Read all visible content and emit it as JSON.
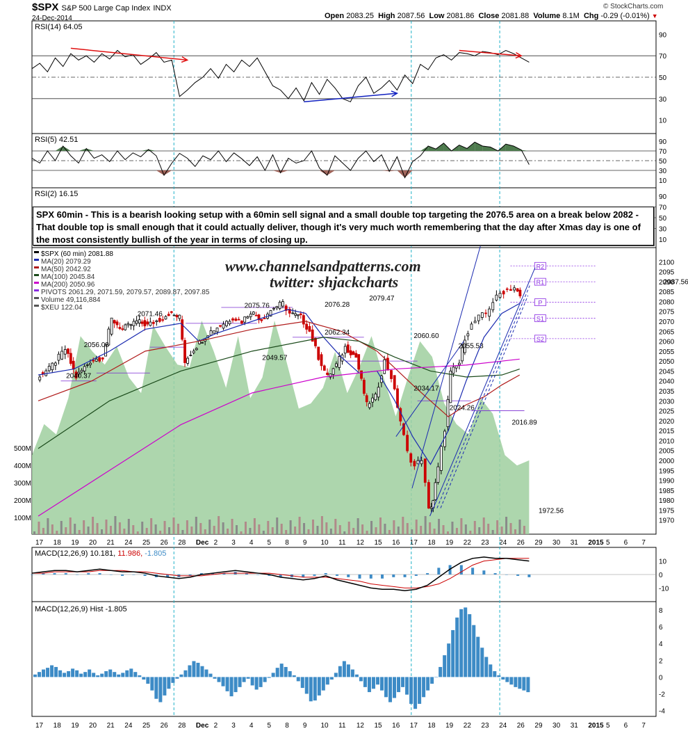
{
  "header": {
    "symbol": "$SPX",
    "name": "S&P 500 Large Cap Index",
    "exchange": "INDX",
    "date": "24-Dec-2014",
    "open_label": "Open",
    "open": "2083.25",
    "high_label": "High",
    "high": "2087.56",
    "low_label": "Low",
    "low": "2081.86",
    "close_label": "Close",
    "close": "2081.88",
    "volume_label": "Volume",
    "volume": "8.1M",
    "chg_label": "Chg",
    "chg": "-0.29 (-0.01%)",
    "credit": "© StockCharts.com"
  },
  "annotation": "SPX 60min - This is a bearish looking setup with a 60min sell signal and a small double top targeting the 2076.5 area on a break below 2082 - That double top is small enough that it could actually deliver, though it's very much worth remembering that the day after Xmas day is one of the most consistently bullish of the year in terms of closing up.",
  "watermark": {
    "line1": "www.channelsandpatterns.com",
    "line2": "twitter: shjackcharts"
  },
  "colors": {
    "up": "#000000",
    "down": "#cc0000",
    "ma20": "#1a2ab0",
    "ma50": "#b01a1a",
    "ma100": "#1a4a1a",
    "ma200": "#cc00cc",
    "pivots": "#8a2be2",
    "volume_area": "#9fcf9f",
    "macd_hist": "#3d8bc6",
    "guide": "#20b2c8"
  },
  "chart_data": [
    {
      "type": "line",
      "panel": "RSI(14)",
      "label": "RSI(14) 64.05",
      "ylim": [
        0,
        100
      ],
      "yticks": [
        10,
        30,
        50,
        70,
        90
      ],
      "series": [
        {
          "name": "RSI(14)",
          "values": [
            58,
            63,
            55,
            68,
            60,
            72,
            66,
            70,
            64,
            72,
            67,
            75,
            69,
            71,
            62,
            67,
            73,
            64,
            66,
            32,
            38,
            45,
            50,
            58,
            49,
            62,
            55,
            66,
            60,
            68,
            55,
            42,
            38,
            30,
            40,
            28,
            45,
            34,
            48,
            40,
            30,
            27,
            42,
            50,
            35,
            40,
            47,
            38,
            52,
            44,
            62,
            57,
            68,
            71,
            66,
            73,
            72,
            70,
            74,
            73,
            71,
            75,
            72,
            68,
            64
          ]
        }
      ],
      "annotations": [
        {
          "type": "divergence-arrow",
          "color": "red",
          "from": [
            5,
            77
          ],
          "to": [
            20,
            66
          ]
        },
        {
          "type": "divergence-arrow",
          "color": "blue",
          "from": [
            35,
            27
          ],
          "to": [
            47,
            35
          ]
        },
        {
          "type": "divergence-arrow",
          "color": "red",
          "from": [
            55,
            75
          ],
          "to": [
            63,
            70
          ]
        }
      ]
    },
    {
      "type": "line",
      "panel": "RSI(5)",
      "label": "RSI(5) 42.51",
      "ylim": [
        0,
        100
      ],
      "yticks": [
        10,
        30,
        50,
        70,
        90
      ],
      "series": [
        {
          "name": "RSI(5)",
          "values": [
            55,
            45,
            70,
            50,
            80,
            60,
            45,
            75,
            55,
            62,
            48,
            70,
            52,
            66,
            58,
            73,
            60,
            20,
            45,
            65,
            55,
            38,
            60,
            52,
            70,
            48,
            66,
            54,
            40,
            58,
            30,
            62,
            25,
            55,
            45,
            50,
            70,
            35,
            20,
            60,
            45,
            30,
            55,
            70,
            48,
            62,
            28,
            58,
            15,
            48,
            60,
            80,
            74,
            86,
            70,
            82,
            75,
            88,
            80,
            78,
            70,
            84,
            80,
            72,
            42
          ]
        }
      ],
      "annotations": []
    },
    {
      "type": "line",
      "panel": "RSI(2)",
      "label": "RSI(2) 16.15",
      "ylim": [
        0,
        100
      ],
      "yticks": [
        10,
        30,
        50,
        70,
        90
      ],
      "series": [
        {
          "name": "RSI(2)",
          "values": []
        }
      ],
      "annotations": []
    },
    {
      "type": "candlestick",
      "panel": "price",
      "title": "$SPX (60 min) 2081.88",
      "ylim": [
        1965,
        2105
      ],
      "yticks": [
        1970,
        1975,
        1980,
        1985,
        1990,
        1995,
        2000,
        2005,
        2010,
        2015,
        2020,
        2025,
        2030,
        2035,
        2040,
        2045,
        2050,
        2055,
        2060,
        2065,
        2070,
        2075,
        2080,
        2085,
        2090,
        2095,
        2100
      ],
      "x_tick_labels": [
        "17",
        "18",
        "19",
        "20",
        "21",
        "24",
        "25",
        "26",
        "28",
        "Dec",
        "2",
        "3",
        "4",
        "5",
        "8",
        "9",
        "10",
        "11",
        "12",
        "15",
        "16",
        "17",
        "18",
        "19",
        "22",
        "23",
        "24",
        "26",
        "29",
        "30",
        "31",
        "2015",
        "5",
        "6",
        "7"
      ],
      "legend": [
        {
          "label": "$SPX (60 min) 2081.88",
          "color": "#000000"
        },
        {
          "label": "MA(20) 2079.29",
          "color": "#1a2ab0"
        },
        {
          "label": "MA(50) 2042.92",
          "color": "#b01a1a"
        },
        {
          "label": "MA(100) 2045.84",
          "color": "#1a4a1a"
        },
        {
          "label": "MA(200) 2050.96",
          "color": "#cc00cc"
        },
        {
          "label": "PIVOTS 2061.29, 2071.59, 2079.57, 2089.87, 2097.85",
          "color": "#8a2be2"
        },
        {
          "label": "Volume 49,116,884",
          "color": "#555555"
        },
        {
          "label": "$XEU 122.04",
          "color": "#555555"
        }
      ],
      "price_labels": [
        {
          "text": "2071.46",
          "at": [
            6,
            2071.5
          ]
        },
        {
          "text": "2056.08",
          "at": [
            3,
            2056
          ]
        },
        {
          "text": "2040.37",
          "at": [
            2,
            2040.4
          ]
        },
        {
          "text": "2075.76",
          "at": [
            12,
            2075.8
          ]
        },
        {
          "text": "2049.57",
          "at": [
            13,
            2049.6
          ]
        },
        {
          "text": "2076.28",
          "at": [
            16.5,
            2076.3
          ]
        },
        {
          "text": "2062.34",
          "at": [
            16.5,
            2062.3
          ]
        },
        {
          "text": "2079.47",
          "at": [
            19,
            2079.5
          ]
        },
        {
          "text": "2060.60",
          "at": [
            21.5,
            2060.6
          ]
        },
        {
          "text": "2034.17",
          "at": [
            21.5,
            2034.2
          ]
        },
        {
          "text": "2055.53",
          "at": [
            24,
            2055.5
          ]
        },
        {
          "text": "2024.26",
          "at": [
            23.5,
            2024.3
          ]
        },
        {
          "text": "2016.89",
          "at": [
            27,
            2016.9
          ]
        },
        {
          "text": "1972.56",
          "at": [
            28.5,
            1972.6
          ]
        },
        {
          "text": "2087.56",
          "at": [
            35.5,
            2087.6
          ]
        }
      ],
      "pivot_labels": [
        "R2",
        "R1",
        "P",
        "S1",
        "S2"
      ],
      "volume_axis_labels": [
        "100M",
        "200M",
        "300M",
        "400M",
        "500M"
      ]
    },
    {
      "type": "line",
      "panel": "MACD",
      "label": "MACD(12,26,9)",
      "values_text": [
        "10.181",
        "11.986",
        "-1.805"
      ],
      "ylim": [
        -15,
        15
      ],
      "yticks": [
        -10,
        0,
        10
      ],
      "series": [
        {
          "name": "MACD(12,26,9)",
          "values": [
            1,
            2,
            3,
            3,
            2,
            3,
            4,
            3,
            2,
            2,
            1,
            -1,
            -2,
            -3,
            -2,
            0,
            1,
            2,
            3,
            2,
            1,
            0,
            -2,
            -3,
            -4,
            -3,
            -1,
            -4,
            -6,
            -8,
            -10,
            -11,
            -11,
            -12,
            -11,
            -8,
            -2,
            4,
            9,
            12,
            13,
            12,
            12,
            11,
            10
          ]
        },
        {
          "name": "Signal",
          "values": [
            1,
            1,
            2,
            2,
            2,
            2,
            3,
            3,
            3,
            2,
            2,
            1,
            0,
            -1,
            -1,
            -1,
            0,
            1,
            1,
            1,
            1,
            1,
            0,
            -1,
            -2,
            -2,
            -2,
            -3,
            -4,
            -5,
            -7,
            -8,
            -9,
            -10,
            -10,
            -9,
            -7,
            -3,
            2,
            7,
            10,
            11,
            12,
            12,
            12
          ]
        }
      ]
    },
    {
      "type": "bar",
      "panel": "MACD Hist",
      "label": "MACD(12,26,9) Hist -1.805",
      "ylim": [
        -4.2,
        8.5
      ],
      "yticks": [
        -4,
        -2,
        0,
        2,
        4,
        6,
        8
      ],
      "values": [
        0.3,
        0.6,
        0.9,
        1.1,
        1.4,
        1.2,
        0.8,
        0.5,
        0.7,
        1.0,
        0.8,
        0.4,
        0.6,
        0.9,
        0.5,
        0.2,
        0.4,
        0.7,
        0.9,
        0.6,
        0.3,
        0.5,
        0.8,
        1.0,
        0.6,
        0.2,
        -0.3,
        -0.8,
        -1.6,
        -2.6,
        -3.0,
        -2.2,
        -1.4,
        -0.7,
        -0.2,
        0.3,
        0.8,
        1.4,
        1.9,
        1.7,
        1.3,
        0.9,
        0.4,
        -0.2,
        -0.6,
        -1.1,
        -1.7,
        -2.3,
        -1.8,
        -1.2,
        -0.6,
        -0.2,
        -1.0,
        -1.5,
        -1.2,
        -0.6,
        -0.1,
        0.5,
        1.1,
        1.6,
        1.2,
        0.7,
        0.2,
        -0.5,
        -1.3,
        -2.0,
        -2.9,
        -2.8,
        -2.2,
        -1.6,
        -0.9,
        -0.3,
        0.5,
        1.3,
        1.9,
        1.5,
        0.9,
        0.3,
        -0.5,
        -1.2,
        -1.8,
        -1.4,
        -0.9,
        -1.6,
        -2.4,
        -3.0,
        -2.5,
        -1.8,
        -1.2,
        -2.1,
        -3.2,
        -3.8,
        -3.2,
        -2.4,
        -1.6,
        -0.8,
        0.0,
        1.2,
        2.6,
        4.0,
        5.6,
        7.1,
        8.1,
        8.3,
        7.5,
        6.2,
        4.8,
        3.5,
        2.4,
        1.5,
        0.7,
        0.2,
        -0.3,
        -0.6,
        -0.9,
        -1.2,
        -1.4,
        -1.6,
        -1.805
      ]
    }
  ]
}
